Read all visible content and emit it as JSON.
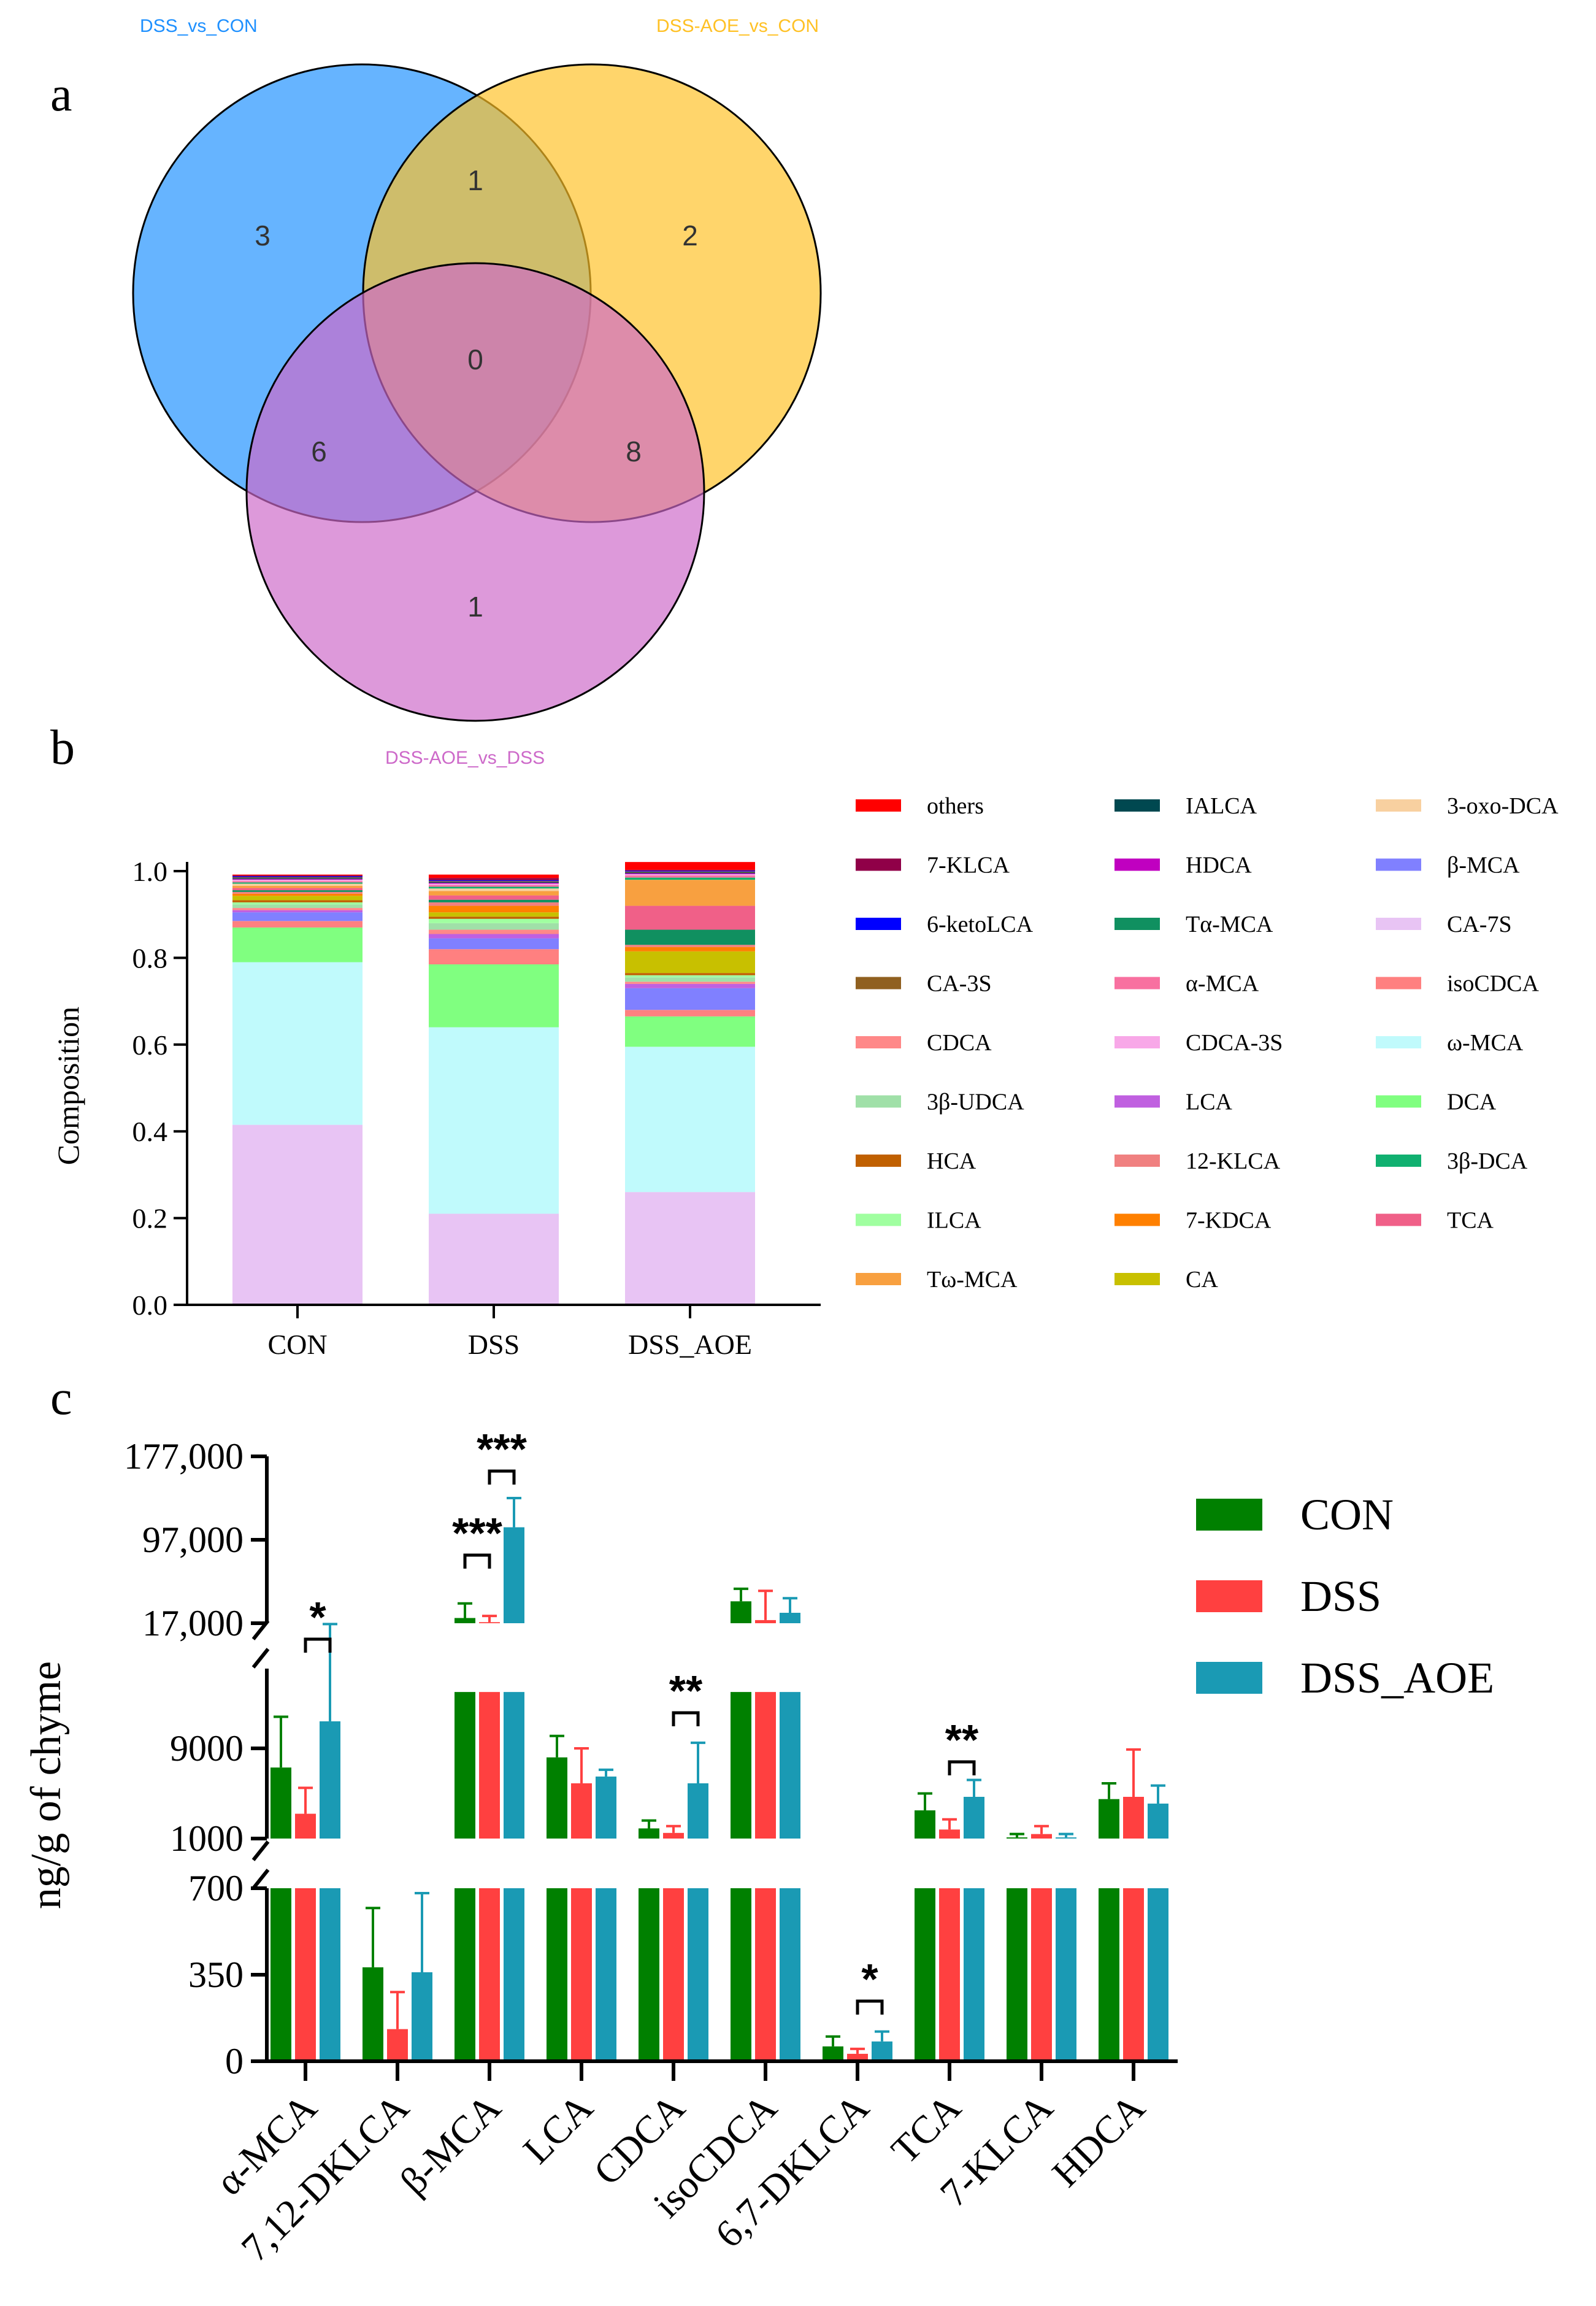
{
  "panel_labels": {
    "a": "a",
    "b": "b",
    "c": "c"
  },
  "chart_data": [
    {
      "type": "venn",
      "sets": [
        {
          "name": "DSS_vs_CON",
          "color": "#1E90FF"
        },
        {
          "name": "DSS-AOE_vs_CON",
          "color": "#FFC125"
        },
        {
          "name": "DSS-AOE_vs_DSS",
          "color": "#CD69C9"
        }
      ],
      "regions": {
        "only_a": "3",
        "only_b": "2",
        "only_c": "1",
        "ab": "1",
        "ac": "6",
        "bc": "8",
        "abc": "0"
      }
    },
    {
      "type": "bar",
      "stacked": true,
      "categories": [
        "CON",
        "DSS",
        "DSS_AOE"
      ],
      "ylabel": "Composition",
      "ylim": [
        0,
        1.0
      ],
      "yticks": [
        "0.0",
        "0.2",
        "0.4",
        "0.6",
        "0.8",
        "1.0"
      ],
      "series": [
        {
          "name": "CA-7S",
          "color": "#E8C4F4",
          "values": [
            0.415,
            0.21,
            0.26
          ]
        },
        {
          "name": "ω-MCA",
          "color": "#C0FAFC",
          "values": [
            0.375,
            0.43,
            0.335
          ]
        },
        {
          "name": "DCA",
          "color": "#80FF80",
          "values": [
            0.08,
            0.145,
            0.07
          ]
        },
        {
          "name": "isoCDCA",
          "color": "#FF8080",
          "values": [
            0.015,
            0.035,
            0.015
          ]
        },
        {
          "name": "β-MCA",
          "color": "#8080FF",
          "values": [
            0.02,
            0.025,
            0.05
          ]
        },
        {
          "name": "LCA",
          "color": "#C060E0",
          "values": [
            0.005,
            0.01,
            0.01
          ]
        },
        {
          "name": "CDCA",
          "color": "#FF8888",
          "values": [
            0.005,
            0.01,
            0.005
          ]
        },
        {
          "name": "3β-UDCA",
          "color": "#A0E0A8",
          "values": [
            0.008,
            0.015,
            0.01
          ]
        },
        {
          "name": "ILCA",
          "color": "#A0FFA0",
          "values": [
            0.005,
            0.01,
            0.005
          ]
        },
        {
          "name": "HCA",
          "color": "#C06000",
          "values": [
            0.005,
            0.005,
            0.005
          ]
        },
        {
          "name": "CA",
          "color": "#C8C000",
          "values": [
            0.01,
            0.01,
            0.05
          ]
        },
        {
          "name": "7-KDCA",
          "color": "#FF8000",
          "values": [
            0.005,
            0.015,
            0.01
          ]
        },
        {
          "name": "12-KLCA",
          "color": "#F08080",
          "values": [
            0.004,
            0.008,
            0.005
          ]
        },
        {
          "name": "Tα-MCA",
          "color": "#109060",
          "values": [
            0.004,
            0.006,
            0.035
          ]
        },
        {
          "name": "TCA",
          "color": "#F06088",
          "values": [
            0.005,
            0.01,
            0.055
          ]
        },
        {
          "name": "Tω-MCA",
          "color": "#F8A040",
          "values": [
            0.005,
            0.01,
            0.06
          ]
        },
        {
          "name": "3-oxo-DCA",
          "color": "#F8D0A0",
          "values": [
            0.005,
            0.006,
            0.0
          ]
        },
        {
          "name": "3β-DCA",
          "color": "#10B070",
          "values": [
            0.003,
            0.004,
            0.005
          ]
        },
        {
          "name": "α-MCA",
          "color": "#F870A0",
          "values": [
            0.003,
            0.004,
            0.005
          ]
        },
        {
          "name": "CDCA-3S",
          "color": "#F8A8E8",
          "values": [
            0.003,
            0.003,
            0.003
          ]
        },
        {
          "name": "HDCA",
          "color": "#C000C0",
          "values": [
            0.002,
            0.002,
            0.002
          ]
        },
        {
          "name": "IALCA",
          "color": "#004850",
          "values": [
            0.002,
            0.002,
            0.002
          ]
        },
        {
          "name": "CA-3S",
          "color": "#906020",
          "values": [
            0.002,
            0.002,
            0.002
          ]
        },
        {
          "name": "6-ketoLCA",
          "color": "#0000FF",
          "values": [
            0.002,
            0.002,
            0.002
          ]
        },
        {
          "name": "7-KLCA",
          "color": "#900048",
          "values": [
            0.002,
            0.005,
            0.002
          ]
        },
        {
          "name": "others",
          "color": "#FF0000",
          "values": [
            0.002,
            0.008,
            0.018
          ]
        }
      ],
      "legend_order": [
        "others",
        "7-KLCA",
        "6-ketoLCA",
        "CA-3S",
        "CDCA",
        "3β-UDCA",
        "HCA",
        "ILCA",
        "Tω-MCA",
        "IALCA",
        "HDCA",
        "Tα-MCA",
        "α-MCA",
        "CDCA-3S",
        "LCA",
        "12-KLCA",
        "7-KDCA",
        "CA",
        "3-oxo-DCA",
        "β-MCA",
        "CA-7S",
        "isoCDCA",
        "ω-MCA",
        "DCA",
        "3β-DCA",
        "TCA"
      ]
    },
    {
      "type": "bar",
      "grouped": true,
      "broken_axis": true,
      "categories": [
        "α-MCA",
        "7,12-DKLCA",
        "β-MCA",
        "LCA",
        "CDCA",
        "isoCDCA",
        "6,7-DKLCA",
        "TCA",
        "7-KLCA",
        "HDCA"
      ],
      "ylabel": "ng/g of chyme",
      "segments": [
        {
          "range": [
            0,
            700
          ],
          "ticks": [
            "0",
            "350",
            "700"
          ]
        },
        {
          "range": [
            1000,
            14000
          ],
          "ticks": [
            "1000",
            "9000"
          ]
        },
        {
          "range": [
            17000,
            177000
          ],
          "ticks": [
            "17,000",
            "97,000",
            "177,000"
          ]
        }
      ],
      "series": [
        {
          "name": "CON",
          "color": "#008000",
          "values": [
            7300,
            380,
            22000,
            8200,
            1900,
            38000,
            60,
            3500,
            1100,
            4500
          ],
          "errors": [
            4500,
            240,
            14000,
            1900,
            700,
            12000,
            40,
            1500,
            300,
            1400
          ]
        },
        {
          "name": "DSS",
          "color": "#FF4040",
          "values": [
            3200,
            130,
            18000,
            5900,
            1500,
            20000,
            30,
            1800,
            1400,
            4700
          ],
          "errors": [
            2300,
            150,
            6000,
            3100,
            600,
            28000,
            20,
            900,
            700,
            4200
          ]
        },
        {
          "name": "DSS_AOE",
          "color": "#1A9AB4",
          "values": [
            11400,
            360,
            109000,
            6500,
            5900,
            27000,
            80,
            4700,
            1100,
            4100
          ],
          "errors": [
            4800,
            320,
            28000,
            600,
            3600,
            14000,
            40,
            1500,
            300,
            1600
          ]
        }
      ],
      "significance": [
        {
          "category": "α-MCA",
          "label": "*"
        },
        {
          "category": "β-MCA",
          "label": "***"
        },
        {
          "category": "β-MCA",
          "label": "***"
        },
        {
          "category": "CDCA",
          "label": "**"
        },
        {
          "category": "6,7-DKLCA",
          "label": "*"
        },
        {
          "category": "TCA",
          "label": "**"
        }
      ]
    }
  ]
}
